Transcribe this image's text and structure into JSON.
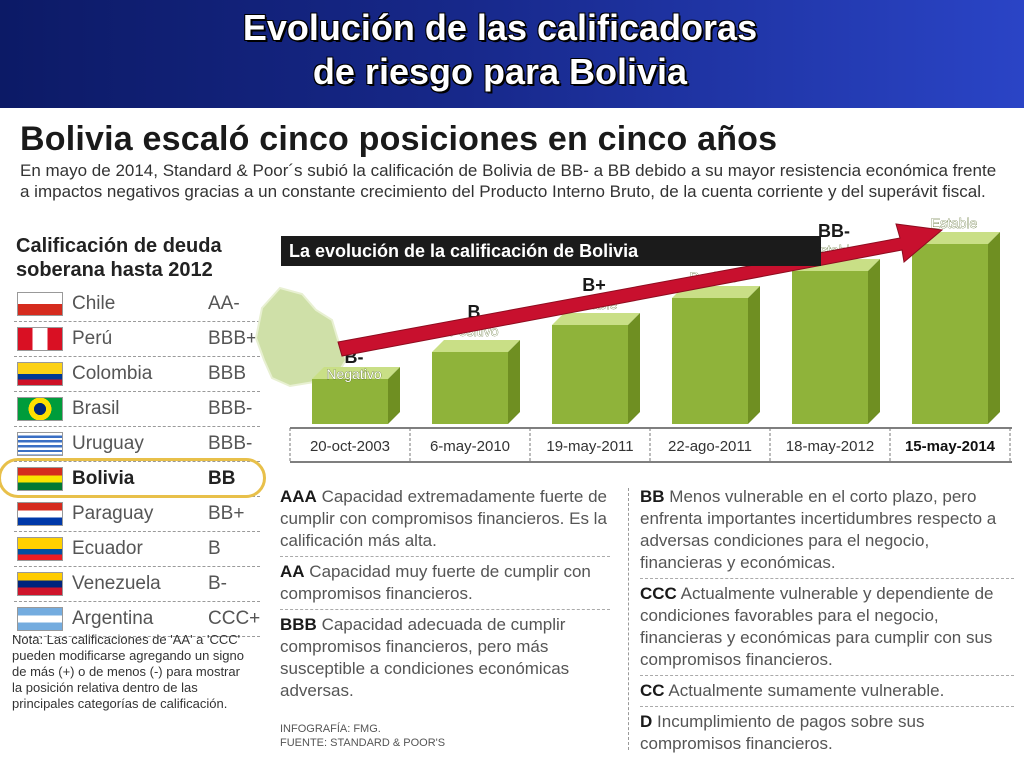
{
  "slide": {
    "title_line1": "Evolución de las calificadoras",
    "title_line2": "de riesgo para Bolivia"
  },
  "infographic": {
    "title": "Bolivia escaló cinco posiciones en cinco años",
    "intro": "En mayo de 2014, Standard & Poor´s subió la calificación de Bolivia de BB- a BB debido a su mayor resistencia económica frente a impactos negativos gracias a un constante crecimiento del Producto Interno Bruto, de la cuenta corriente y del superávit fiscal."
  },
  "ranking": {
    "title": "Calificación de deuda soberana hasta 2012",
    "countries": [
      {
        "name": "Chile",
        "rating": "AA-",
        "flag": "chile"
      },
      {
        "name": "Perú",
        "rating": "BBB+",
        "flag": "peru"
      },
      {
        "name": "Colombia",
        "rating": "BBB",
        "flag": "colombia"
      },
      {
        "name": "Brasil",
        "rating": "BBB-",
        "flag": "brasil"
      },
      {
        "name": "Uruguay",
        "rating": "BBB-",
        "flag": "uruguay"
      },
      {
        "name": "Bolivia",
        "rating": "BB",
        "flag": "bolivia"
      },
      {
        "name": "Paraguay",
        "rating": "BB+",
        "flag": "paraguay"
      },
      {
        "name": "Ecuador",
        "rating": "B",
        "flag": "ecuador"
      },
      {
        "name": "Venezuela",
        "rating": "B-",
        "flag": "venezuela"
      },
      {
        "name": "Argentina",
        "rating": "CCC+",
        "flag": "argentina"
      }
    ],
    "highlight": "Bolivia",
    "note": "Nota: Las calificaciones de 'AA' a 'CCC' pueden modificarse agregando un signo de más (+) o de menos (-) para mostrar la posición relativa dentro de las principales categorías de calificación."
  },
  "chart_data": {
    "type": "bar",
    "title": "La evolución de la calificación de Bolivia",
    "categories": [
      "20-oct-2003",
      "6-may-2010",
      "19-may-2011",
      "22-ago-2011",
      "18-may-2012",
      "15-may-2014"
    ],
    "ratings": [
      "B-",
      "B",
      "B+",
      "B+",
      "BB-",
      "BB"
    ],
    "outlooks": [
      "Negativo",
      "Positivo",
      "Estable",
      "Positivo",
      "Estable",
      "Estable"
    ],
    "values": [
      1,
      2,
      3,
      4,
      5,
      6
    ],
    "highlight_last": true,
    "colors": {
      "bar_front": "#8fb33a",
      "bar_top": "#c9df86",
      "bar_side": "#6f8f22",
      "arrow": "#c8102e"
    }
  },
  "definitions": {
    "left": [
      {
        "code": "AAA",
        "text": "Capacidad extremadamente fuerte de cumplir con compromisos financieros. Es la calificación más alta."
      },
      {
        "code": "AA",
        "text": "Capacidad muy fuerte de cumplir con compromisos financieros."
      },
      {
        "code": "BBB",
        "text": "Capacidad adecuada de cumplir compromisos financieros, pero más susceptible a condiciones económicas adversas."
      }
    ],
    "right": [
      {
        "code": "BB",
        "text": "Menos vulnerable en el corto plazo, pero enfrenta importantes incertidumbres respecto a adversas condiciones para el negocio, financieras y económicas."
      },
      {
        "code": "CCC",
        "text": "Actualmente vulnerable y dependiente de condiciones favorables para el negocio, financieras y económicas para cumplir con sus compromisos financieros."
      },
      {
        "code": "CC",
        "text": "Actualmente sumamente vulnerable."
      },
      {
        "code": "D",
        "text": "Incumplimiento de pagos sobre sus compromisos financieros."
      }
    ]
  },
  "source": {
    "line1": "INFOGRAFÍA: FMG.",
    "line2": "FUENTE: STANDARD & POOR'S"
  }
}
